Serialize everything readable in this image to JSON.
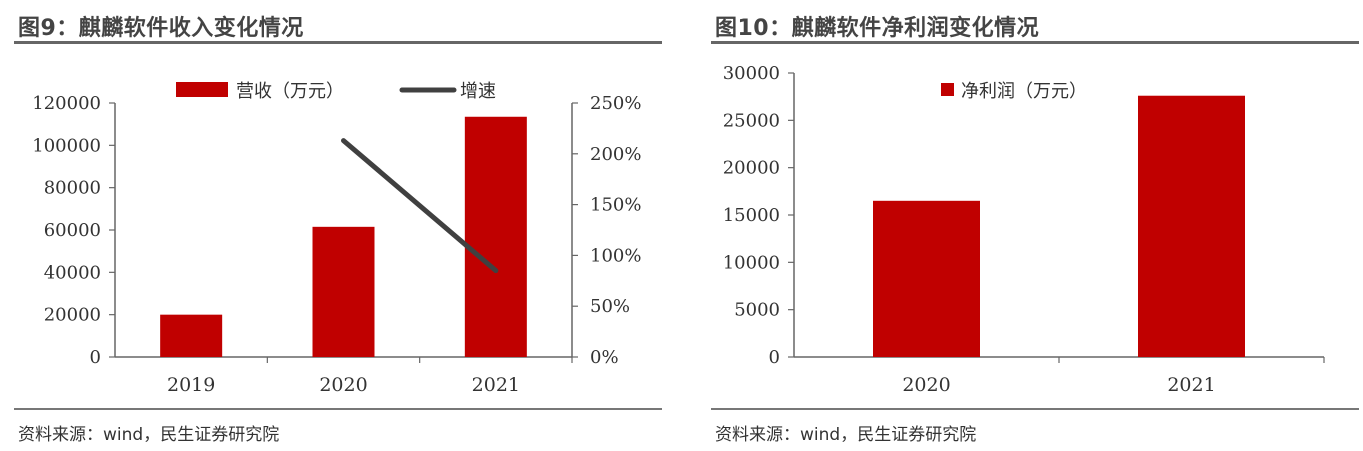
{
  "colors": {
    "bar": "#C00000",
    "line": "#404040",
    "axis": "#666666"
  },
  "chart1": {
    "figure_title": "图9：麒麟软件收入变化情况",
    "source": "资料来源：wind，民生证券研究院",
    "y_ticks": [
      "0",
      "20000",
      "40000",
      "60000",
      "80000",
      "100000",
      "120000"
    ],
    "y2_ticks": [
      "0%",
      "50%",
      "100%",
      "150%",
      "200%",
      "250%"
    ],
    "legend_bar": "营收（万元）",
    "legend_line": "增速"
  },
  "chart2": {
    "figure_title": "图10：麒麟软件净利润变化情况",
    "source": "资料来源：wind，民生证券研究院",
    "y_ticks": [
      "0",
      "5000",
      "10000",
      "15000",
      "20000",
      "25000",
      "30000"
    ],
    "legend_bar": "净利润（万元）"
  },
  "chart_data": [
    {
      "type": "bar",
      "title": "图9：麒麟软件收入变化情况",
      "categories": [
        "2019",
        "2020",
        "2021"
      ],
      "series": [
        {
          "name": "营收（万元）",
          "type": "bar",
          "axis": "left",
          "values": [
            20000,
            61500,
            113500
          ]
        },
        {
          "name": "增速",
          "type": "line",
          "axis": "right",
          "values": [
            null,
            2.13,
            0.85
          ]
        }
      ],
      "ylim": [
        0,
        120000
      ],
      "y2lim": [
        0,
        2.5
      ],
      "legend": "top"
    },
    {
      "type": "bar",
      "title": "图10：麒麟软件净利润变化情况",
      "categories": [
        "2020",
        "2021"
      ],
      "series": [
        {
          "name": "净利润（万元）",
          "values": [
            16500,
            27600
          ]
        }
      ],
      "ylim": [
        0,
        30000
      ],
      "legend": "top-left"
    }
  ]
}
